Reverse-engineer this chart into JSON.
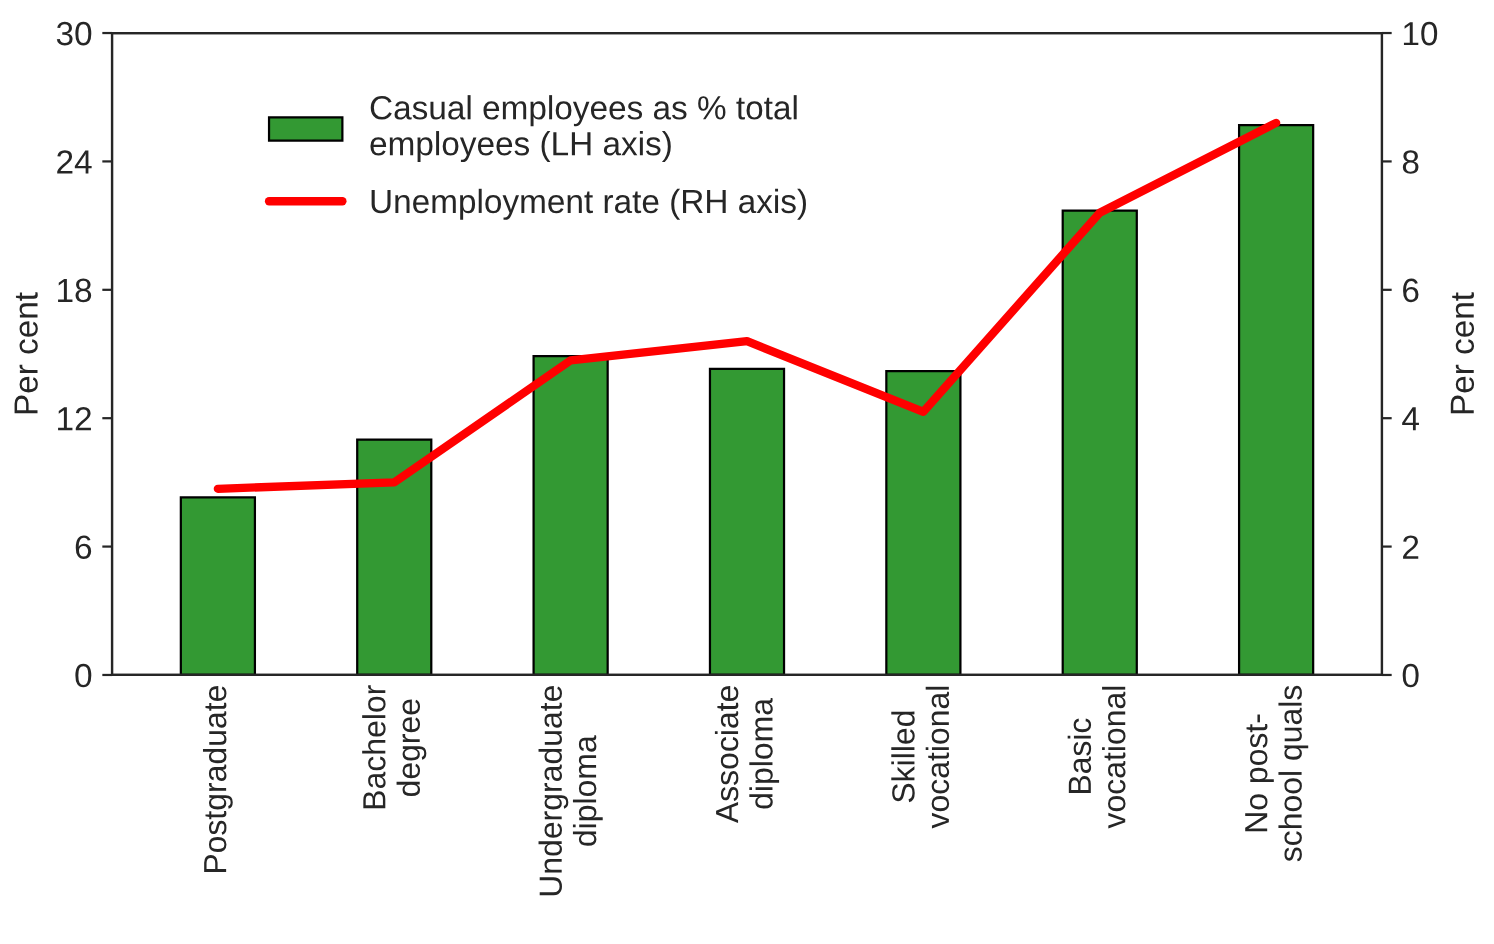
{
  "chart_data": {
    "type": "bar",
    "ylabel": "Per cent",
    "y2label": "Per cent",
    "categories": [
      "Postgraduate",
      "Bachelor\ndegree",
      "Undergraduate\ndiploma",
      "Associate\ndiploma",
      "Skilled\nvocational",
      "Basic\nvocational",
      "No post-\nschool quals"
    ],
    "series": [
      {
        "name": "Casual employees as % total\nemployees (LH axis)",
        "color": "#339933",
        "values": [
          8.3,
          11.0,
          14.9,
          14.3,
          14.2,
          21.7,
          25.7
        ]
      },
      {
        "name": "Unemployment rate (RH axis)",
        "type": "line",
        "axis": "y2",
        "color": "#ff0000",
        "values": [
          2.9,
          3.0,
          4.9,
          5.2,
          4.1,
          7.2,
          8.6
        ]
      }
    ],
    "ylim": [
      0,
      30
    ],
    "yticks": [
      0,
      6,
      12,
      18,
      24,
      30
    ],
    "y2lim": [
      0,
      10
    ],
    "y2ticks": [
      0,
      2,
      4,
      6,
      8,
      10
    ],
    "grid": false,
    "legend": "top left",
    "marker": "none",
    "line_style": "solid"
  }
}
